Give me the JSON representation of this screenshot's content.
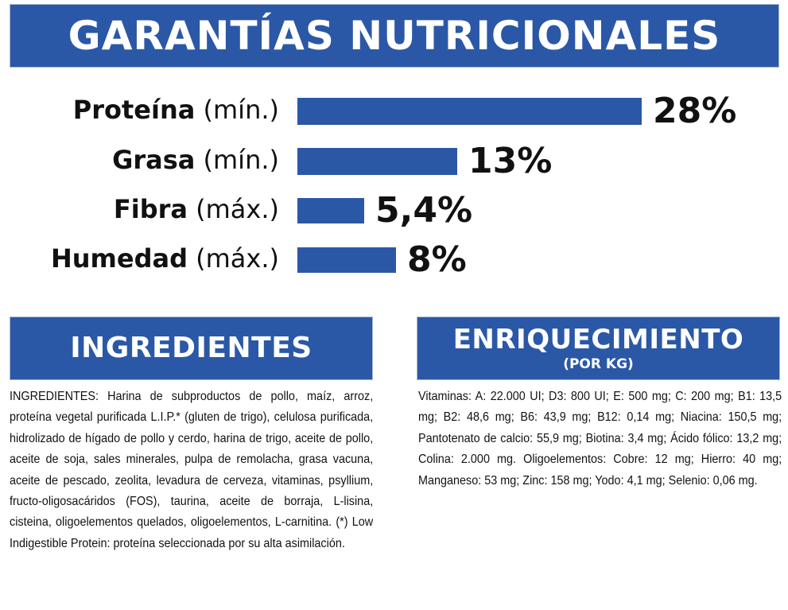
{
  "header": {
    "title": "GARANTÍAS NUTRICIONALES"
  },
  "chart_data": {
    "type": "bar",
    "orientation": "horizontal",
    "title": "GARANTÍAS NUTRICIONALES",
    "categories": [
      "Proteína (mín.)",
      "Grasa (mín.)",
      "Fibra (máx.)",
      "Humedad (máx.)"
    ],
    "names": [
      "Proteína",
      "Grasa",
      "Fibra",
      "Humedad"
    ],
    "qualifiers": [
      "(mín.)",
      "(mín.)",
      "(máx.)",
      "(máx.)"
    ],
    "values": [
      28,
      13,
      5.4,
      8
    ],
    "value_labels": [
      "28%",
      "13%",
      "5,4%",
      "8%"
    ],
    "unit": "%",
    "bar_color": "#2b58a6",
    "xlim": [
      0,
      28
    ],
    "grid": false,
    "axes_visible": false
  },
  "ingredients": {
    "title": "INGREDIENTES",
    "text": "INGREDIENTES: Harina de subproductos de pollo, maíz, arroz, proteína vegetal purificada L.I.P.* (gluten de trigo), celulosa purificada, hidrolizado de hígado de pollo y cerdo, harina de trigo, aceite de pollo, aceite de soja, sales minerales, pulpa de remolacha, grasa vacuna, aceite de pescado, zeolita, levadura de cerveza, vitaminas, psyllium, fructo-oligosacáridos (FOS), taurina, aceite de borraja, L-lisina, cisteina, oligoelementos quelados, oligoelementos, L-carnitina. (*) Low Indigestible Protein: proteína seleccionada por su alta asimilación."
  },
  "enrichment": {
    "title": "ENRIQUECIMIENTO",
    "subtitle": "(POR KG)",
    "text": "Vitaminas: A: 22.000 UI; D3: 800 UI; E: 500 mg; C: 200 mg; B1: 13,5 mg; B2: 48,6 mg; B6: 43,9 mg; B12: 0,14 mg; Niacina: 150,5 mg; Pantotenato de calcio: 55,9 mg; Biotina: 3,4 mg; Ácido fólico: 13,2 mg; Colina: 2.000 mg. Oligoelementos: Cobre: 12 mg; Hierro: 40 mg; Manganeso: 53 mg; Zinc: 158 mg; Yodo: 4,1 mg; Selenio: 0,06 mg."
  },
  "colors": {
    "brand_blue": "#2b58a6",
    "text": "#111111",
    "background": "#ffffff"
  }
}
